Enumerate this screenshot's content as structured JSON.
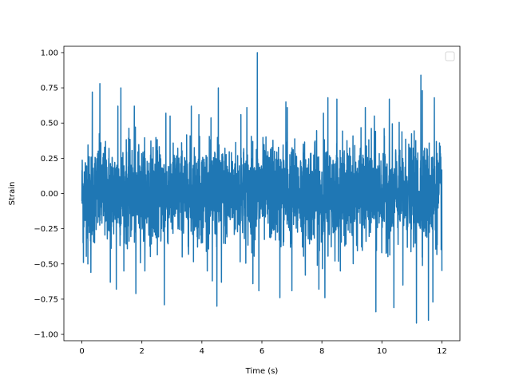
{
  "chart_data": {
    "type": "line",
    "title": "",
    "xlabel": "Time (s)",
    "ylabel": "Strain",
    "xlim": [
      -0.6,
      12.6
    ],
    "ylim": [
      -1.045,
      1.045
    ],
    "x_ticks": [
      0,
      2,
      4,
      6,
      8,
      10,
      12
    ],
    "x_tick_labels": [
      "0",
      "2",
      "4",
      "6",
      "8",
      "10",
      "12"
    ],
    "y_ticks": [
      -1.0,
      -0.75,
      -0.5,
      -0.25,
      0.0,
      0.25,
      0.5,
      0.75,
      1.0
    ],
    "y_tick_labels": [
      "−1.00",
      "−0.75",
      "−0.50",
      "−0.25",
      "0.00",
      "0.25",
      "0.50",
      "0.75",
      "1.00"
    ],
    "legend": {
      "placement": "top-right",
      "entries": []
    },
    "grid": false,
    "series": [
      {
        "color": "#1f77b4",
        "x_range": [
          0,
          12
        ],
        "typical_envelope": [
          -0.45,
          0.45
        ],
        "peaks": [
          {
            "x": 0.2,
            "y": 0.68
          },
          {
            "x": 0.35,
            "y": 0.72
          },
          {
            "x": 0.6,
            "y": 0.78
          },
          {
            "x": 1.2,
            "y": 0.62
          },
          {
            "x": 1.3,
            "y": 0.55
          },
          {
            "x": 1.3,
            "y": 0.75
          },
          {
            "x": 1.75,
            "y": 0.62
          },
          {
            "x": 2.8,
            "y": 0.57
          },
          {
            "x": 3.65,
            "y": 0.62
          },
          {
            "x": 3.9,
            "y": 0.56
          },
          {
            "x": 4.55,
            "y": 0.75
          },
          {
            "x": 4.65,
            "y": 0.75
          },
          {
            "x": 5.3,
            "y": 0.56
          },
          {
            "x": 5.5,
            "y": 0.61
          },
          {
            "x": 5.85,
            "y": 1.0
          },
          {
            "x": 6.8,
            "y": 0.65
          },
          {
            "x": 6.85,
            "y": 0.61
          },
          {
            "x": 8.05,
            "y": 0.57
          },
          {
            "x": 8.2,
            "y": 0.68
          },
          {
            "x": 8.5,
            "y": 0.67
          },
          {
            "x": 9.45,
            "y": 0.61
          },
          {
            "x": 9.75,
            "y": 0.55
          },
          {
            "x": 10.25,
            "y": 0.67
          },
          {
            "x": 10.7,
            "y": 0.5
          },
          {
            "x": 11.3,
            "y": 0.84
          },
          {
            "x": 11.35,
            "y": 0.86
          },
          {
            "x": 11.35,
            "y": 0.73
          },
          {
            "x": 11.75,
            "y": 0.68
          }
        ],
        "troughs": [
          {
            "x": 0.05,
            "y": -0.49
          },
          {
            "x": 0.2,
            "y": -0.5
          },
          {
            "x": 0.3,
            "y": -0.56
          },
          {
            "x": 0.95,
            "y": -0.63
          },
          {
            "x": 1.15,
            "y": -0.68
          },
          {
            "x": 1.8,
            "y": -0.71
          },
          {
            "x": 2.75,
            "y": -0.79
          },
          {
            "x": 4.5,
            "y": -0.8
          },
          {
            "x": 4.35,
            "y": -0.62
          },
          {
            "x": 4.65,
            "y": -0.63
          },
          {
            "x": 5.7,
            "y": -0.64
          },
          {
            "x": 5.9,
            "y": -0.69
          },
          {
            "x": 6.6,
            "y": -0.74
          },
          {
            "x": 7.0,
            "y": -0.69
          },
          {
            "x": 7.45,
            "y": -0.58
          },
          {
            "x": 7.9,
            "y": -0.68
          },
          {
            "x": 8.1,
            "y": -0.74
          },
          {
            "x": 9.8,
            "y": -0.84
          },
          {
            "x": 10.4,
            "y": -0.81
          },
          {
            "x": 10.7,
            "y": -0.65
          },
          {
            "x": 11.15,
            "y": -0.92
          },
          {
            "x": 11.55,
            "y": -0.9
          },
          {
            "x": 11.7,
            "y": -0.77
          },
          {
            "x": 12.05,
            "y": -0.55
          }
        ]
      }
    ]
  }
}
